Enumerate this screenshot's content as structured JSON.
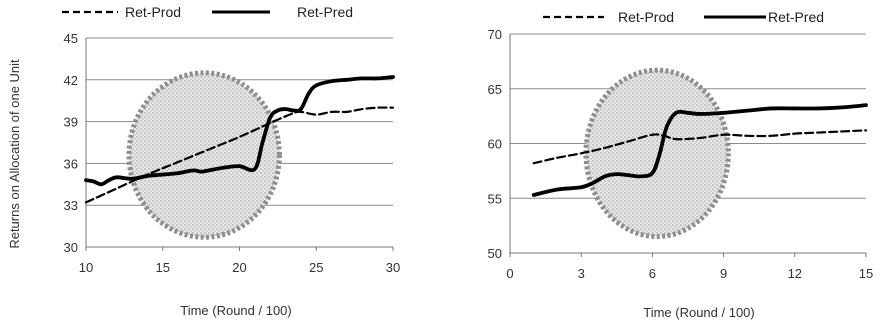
{
  "chart_data": [
    {
      "type": "line",
      "title": "",
      "xlabel": "Time (Round / 100)",
      "ylabel": "Returns on Allocation of one Unit",
      "xlim": [
        10,
        30
      ],
      "ylim": [
        30,
        45
      ],
      "xticks": [
        10,
        15,
        20,
        25,
        30
      ],
      "yticks": [
        30,
        33,
        36,
        39,
        42,
        45
      ],
      "grid": "horizontal",
      "legend": "top",
      "highlight_ellipse": {
        "cx": 17.7,
        "cy": 36.6,
        "rx": 4.9,
        "ry": 5.9
      },
      "series": [
        {
          "name": "Ret-Prod",
          "style": "dashed",
          "x": [
            10,
            12,
            14,
            16,
            18,
            20,
            22,
            23.5,
            24,
            25,
            26,
            27,
            28,
            29,
            30
          ],
          "y": [
            33.2,
            34.2,
            35.2,
            36.1,
            37.0,
            37.9,
            38.9,
            39.6,
            39.7,
            39.5,
            39.7,
            39.7,
            39.9,
            40.0,
            40.0
          ]
        },
        {
          "name": "Ret-Pred",
          "style": "solid",
          "x": [
            10,
            10.5,
            11,
            11.5,
            12,
            13,
            14,
            15,
            16,
            17,
            17.5,
            18,
            19,
            20,
            21,
            21.5,
            22,
            22.5,
            23,
            23.5,
            24,
            24.5,
            25,
            26,
            27,
            28,
            29,
            30
          ],
          "y": [
            34.8,
            34.7,
            34.5,
            34.8,
            35.0,
            34.9,
            35.1,
            35.2,
            35.3,
            35.5,
            35.4,
            35.5,
            35.7,
            35.8,
            35.6,
            37.5,
            39.3,
            39.8,
            39.9,
            39.8,
            39.9,
            41.0,
            41.6,
            41.9,
            42.0,
            42.1,
            42.1,
            42.2
          ]
        }
      ]
    },
    {
      "type": "line",
      "title": "",
      "xlabel": "Time (Round / 100)",
      "ylabel": "",
      "xlim": [
        0,
        15
      ],
      "ylim": [
        50,
        70
      ],
      "xticks": [
        0,
        3,
        6,
        9,
        12,
        15
      ],
      "yticks": [
        50,
        55,
        60,
        65,
        70
      ],
      "grid": "horizontal",
      "legend": "top",
      "highlight_ellipse": {
        "cx": 6.2,
        "cy": 59.1,
        "rx": 3.0,
        "ry": 7.6
      },
      "series": [
        {
          "name": "Ret-Prod",
          "style": "dashed",
          "x": [
            1,
            2,
            3,
            4,
            5,
            6,
            6.5,
            7,
            8,
            9,
            10,
            11,
            12,
            13,
            14,
            15
          ],
          "y": [
            58.2,
            58.7,
            59.1,
            59.6,
            60.2,
            60.8,
            60.7,
            60.4,
            60.5,
            60.8,
            60.7,
            60.7,
            60.9,
            61.0,
            61.1,
            61.2
          ]
        },
        {
          "name": "Ret-Pred",
          "style": "solid",
          "x": [
            1,
            2,
            3,
            3.5,
            4,
            4.5,
            5,
            5.5,
            6,
            6.3,
            6.6,
            7,
            7.5,
            8,
            9,
            10,
            11,
            12,
            13,
            14,
            15
          ],
          "y": [
            55.3,
            55.8,
            56.0,
            56.4,
            57.0,
            57.2,
            57.1,
            57.0,
            57.3,
            59.0,
            61.5,
            62.8,
            62.8,
            62.7,
            62.8,
            63.0,
            63.2,
            63.2,
            63.2,
            63.3,
            63.5
          ]
        }
      ]
    }
  ]
}
